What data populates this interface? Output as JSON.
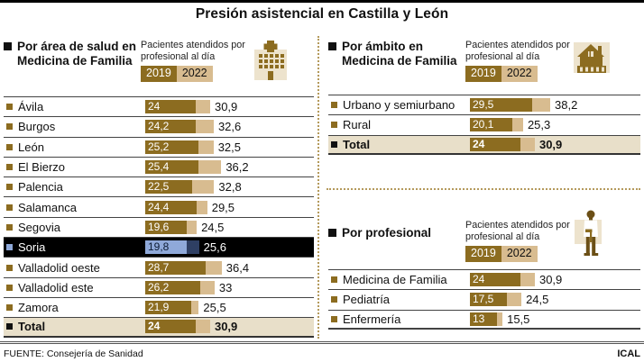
{
  "title": "Presión asistencial en Castilla y León",
  "footer": {
    "source": "FUENTE: Consejería de Sanidad",
    "credit": "ICAL"
  },
  "colors": {
    "bar_2019": "#8c6c20",
    "bar_2022": "#d8bc90",
    "highlight_row_bg": "#000000",
    "highlight_bar_2019": "#8fa9d9",
    "highlight_bar_2022": "#2e3f63",
    "total_row_bg": "#e8dfc9",
    "divider_dotted": "#b49a5c"
  },
  "chart_data": [
    {
      "type": "bar",
      "orientation": "horizontal",
      "title": "Por área de salud en Medicina de Familia",
      "legend_label": "Pacientes atendidos por profesional al día",
      "series_names": [
        "2019",
        "2022"
      ],
      "icon": "hospital-icon",
      "rows": [
        {
          "label": "Ávila",
          "values": [
            24,
            30.9
          ],
          "display": [
            "24",
            "30,9"
          ]
        },
        {
          "label": "Burgos",
          "values": [
            24.2,
            32.6
          ],
          "display": [
            "24,2",
            "32,6"
          ]
        },
        {
          "label": "León",
          "values": [
            25.2,
            32.5
          ],
          "display": [
            "25,2",
            "32,5"
          ]
        },
        {
          "label": "El Bierzo",
          "values": [
            25.4,
            36.2
          ],
          "display": [
            "25,4",
            "36,2"
          ]
        },
        {
          "label": "Palencia",
          "values": [
            22.5,
            32.8
          ],
          "display": [
            "22,5",
            "32,8"
          ]
        },
        {
          "label": "Salamanca",
          "values": [
            24.4,
            29.5
          ],
          "display": [
            "24,4",
            "29,5"
          ]
        },
        {
          "label": "Segovia",
          "values": [
            19.6,
            24.5
          ],
          "display": [
            "19,6",
            "24,5"
          ]
        },
        {
          "label": "Soria",
          "values": [
            19.8,
            25.6
          ],
          "display": [
            "19,8",
            "25,6"
          ],
          "highlight": true
        },
        {
          "label": "Valladolid oeste",
          "values": [
            28.7,
            36.4
          ],
          "display": [
            "28,7",
            "36,4"
          ]
        },
        {
          "label": "Valladolid este",
          "values": [
            26.2,
            33
          ],
          "display": [
            "26,2",
            "33"
          ]
        },
        {
          "label": "Zamora",
          "values": [
            21.9,
            25.5
          ],
          "display": [
            "21,9",
            "25,5"
          ]
        },
        {
          "label": "Total",
          "values": [
            24,
            30.9
          ],
          "display": [
            "24",
            "30,9"
          ],
          "total": true
        }
      ]
    },
    {
      "type": "bar",
      "orientation": "horizontal",
      "title": "Por ámbito en Medicina de Familia",
      "legend_label": "Pacientes atendidos por profesional al día",
      "series_names": [
        "2019",
        "2022"
      ],
      "icon": "house-icon",
      "rows": [
        {
          "label": "Urbano y semiurbano",
          "values": [
            29.5,
            38.2
          ],
          "display": [
            "29,5",
            "38,2"
          ]
        },
        {
          "label": "Rural",
          "values": [
            20.1,
            25.3
          ],
          "display": [
            "20,1",
            "25,3"
          ]
        },
        {
          "label": "Total",
          "values": [
            24,
            30.9
          ],
          "display": [
            "24",
            "30,9"
          ],
          "total": true
        }
      ]
    },
    {
      "type": "bar",
      "orientation": "horizontal",
      "title": "Por profesional",
      "legend_label": "Pacientes atendidos por profesional al día",
      "series_names": [
        "2019",
        "2022"
      ],
      "icon": "doctor-icon",
      "rows": [
        {
          "label": "Medicina de Familia",
          "values": [
            24,
            30.9
          ],
          "display": [
            "24",
            "30,9"
          ]
        },
        {
          "label": "Pediatría",
          "values": [
            17.5,
            24.5
          ],
          "display": [
            "17,5",
            "24,5"
          ]
        },
        {
          "label": "Enfermería",
          "values": [
            13,
            15.5
          ],
          "display": [
            "13",
            "15,5"
          ]
        }
      ]
    }
  ]
}
